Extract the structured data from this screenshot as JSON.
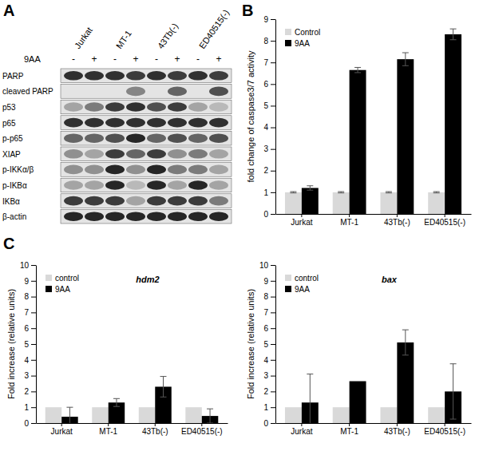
{
  "panel_labels": [
    "A",
    "B",
    "C"
  ],
  "blot": {
    "treatment_label": "9AA",
    "lanes": [
      "Jurkat",
      "MT-1",
      "43Tb(-)",
      "ED40515(-)"
    ],
    "treatments": [
      "-",
      "+"
    ],
    "rows": [
      {
        "label": "PARP",
        "intensity": [
          0.85,
          0.85,
          0.85,
          0.8,
          0.85,
          0.8,
          0.85,
          0.8
        ]
      },
      {
        "label": "cleaved PARP",
        "intensity": [
          0,
          0,
          0,
          0.45,
          0,
          0.6,
          0,
          0.7
        ]
      },
      {
        "label": "p53",
        "intensity": [
          0.3,
          0.5,
          0.8,
          0.85,
          0.7,
          0.8,
          0.3,
          0.2
        ]
      },
      {
        "label": "p65",
        "intensity": [
          0.85,
          0.85,
          0.85,
          0.85,
          0.85,
          0.85,
          0.85,
          0.85
        ]
      },
      {
        "label": "p-p65",
        "intensity": [
          0.6,
          0.6,
          0.7,
          0.9,
          0.6,
          0.7,
          0.6,
          0.7
        ]
      },
      {
        "label": "XIAP",
        "intensity": [
          0.4,
          0.3,
          0.8,
          0.6,
          0.8,
          0.4,
          0.5,
          0.3
        ]
      },
      {
        "label": "p-IKKα/β",
        "intensity": [
          0.4,
          0.4,
          0.9,
          0.4,
          0.9,
          0.5,
          0.5,
          0.3
        ]
      },
      {
        "label": "p-IKBα",
        "intensity": [
          0.3,
          0.3,
          0.9,
          0.2,
          0.9,
          0.3,
          0.9,
          0.3
        ]
      },
      {
        "label": "IKBα",
        "intensity": [
          0.8,
          0.8,
          0.8,
          0.3,
          0.8,
          0.8,
          0.8,
          0.5
        ]
      },
      {
        "label": "β-actin",
        "intensity": [
          0.9,
          0.9,
          0.9,
          0.9,
          0.9,
          0.9,
          0.9,
          0.9
        ]
      }
    ]
  },
  "chart_data": [
    {
      "type": "bar",
      "y_label": "fold change of caspase3/7 activity",
      "categories": [
        "Jurkat",
        "MT-1",
        "43Tb(-)",
        "ED40515(-)"
      ],
      "series": [
        {
          "name": "Control",
          "color": "#d9d9d9",
          "values": [
            1,
            1,
            1,
            1
          ],
          "errors": [
            0.03,
            0.03,
            0.03,
            0.03
          ]
        },
        {
          "name": "9AA",
          "color": "#000000",
          "values": [
            1.2,
            6.65,
            7.15,
            8.3
          ],
          "errors": [
            0.1,
            0.12,
            0.3,
            0.25
          ]
        }
      ],
      "ylim": [
        0,
        9
      ],
      "yticks": [
        0,
        1,
        2,
        3,
        4,
        5,
        6,
        7,
        8,
        9
      ],
      "legend": "top-left"
    },
    {
      "type": "bar",
      "title": "hdm2",
      "y_label": "Fold increase (relative units)",
      "categories": [
        "Jurkat",
        "MT-1",
        "43Tb(-)",
        "ED40515(-)"
      ],
      "series": [
        {
          "name": "control",
          "color": "#d9d9d9",
          "values": [
            1,
            1,
            1,
            1
          ]
        },
        {
          "name": "9AA",
          "color": "#000000",
          "values": [
            0.4,
            1.3,
            2.3,
            0.45
          ],
          "errors": [
            0.6,
            0.25,
            0.65,
            0.45
          ]
        }
      ],
      "ylim": [
        0,
        10
      ],
      "yticks": [
        0,
        1,
        2,
        3,
        4,
        5,
        6,
        7,
        8,
        9,
        10
      ],
      "legend": "top-left"
    },
    {
      "type": "bar",
      "title": "bax",
      "y_label": "Fold increase (relative units)",
      "categories": [
        "Jurkat",
        "MT-1",
        "43Tb(-)",
        "ED40515(-)"
      ],
      "series": [
        {
          "name": "control",
          "color": "#d9d9d9",
          "values": [
            1,
            1,
            1,
            1
          ]
        },
        {
          "name": "9AA",
          "color": "#000000",
          "values": [
            1.3,
            2.65,
            5.1,
            2.0
          ],
          "errors": [
            1.8,
            null,
            0.8,
            1.75
          ]
        }
      ],
      "ylim": [
        0,
        10
      ],
      "yticks": [
        0,
        1,
        2,
        3,
        4,
        5,
        6,
        7,
        8,
        9,
        10
      ],
      "legend": "top-left"
    }
  ]
}
